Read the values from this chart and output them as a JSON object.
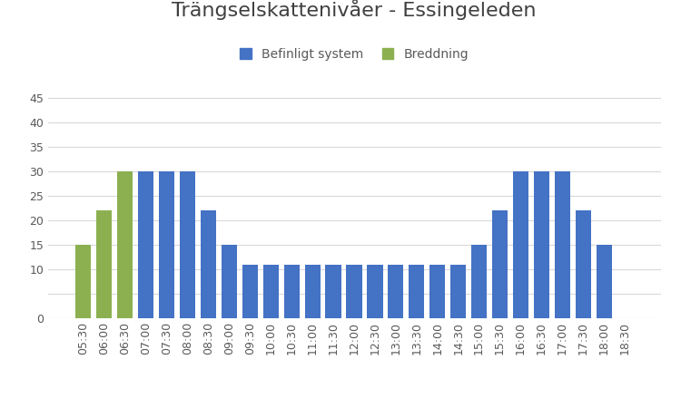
{
  "title": "Trängselskattenivåer - Essingeleden",
  "categories": [
    "05:30",
    "06:00",
    "06:30",
    "07:00",
    "07:30",
    "08:00",
    "08:30",
    "09:00",
    "09:30",
    "10:00",
    "10:30",
    "11:00",
    "11:30",
    "12:00",
    "12:30",
    "13:00",
    "13:30",
    "14:00",
    "14:30",
    "15:00",
    "15:30",
    "16:00",
    "16:30",
    "17:00",
    "17:30",
    "18:00",
    "18:30"
  ],
  "blue_values": [
    0,
    15,
    22,
    30,
    30,
    30,
    22,
    15,
    11,
    11,
    11,
    11,
    11,
    11,
    11,
    11,
    11,
    11,
    11,
    15,
    22,
    30,
    30,
    30,
    22,
    15,
    0
  ],
  "green_values": [
    15,
    22,
    30,
    0,
    0,
    0,
    0,
    0,
    0,
    0,
    0,
    0,
    0,
    0,
    0,
    0,
    0,
    0,
    0,
    0,
    0,
    0,
    0,
    0,
    0,
    0,
    0
  ],
  "blue_color": "#4472C4",
  "green_color": "#8CB050",
  "legend_blue": "Befinligt system",
  "legend_green": "Breddning",
  "ylim": [
    0,
    50
  ],
  "ytick_positions": [
    0,
    5,
    10,
    15,
    20,
    25,
    30,
    35,
    40,
    45
  ],
  "ytick_labels": [
    "0",
    "",
    "10",
    "15",
    "20",
    "25",
    "30",
    "35",
    "40",
    "45"
  ],
  "background_color": "#ffffff",
  "plot_bg_color": "#ffffff",
  "grid_color": "#d9d9d9",
  "title_color": "#404040",
  "tick_color": "#595959",
  "title_fontsize": 16,
  "legend_fontsize": 10,
  "axis_fontsize": 9,
  "bar_width": 0.75
}
